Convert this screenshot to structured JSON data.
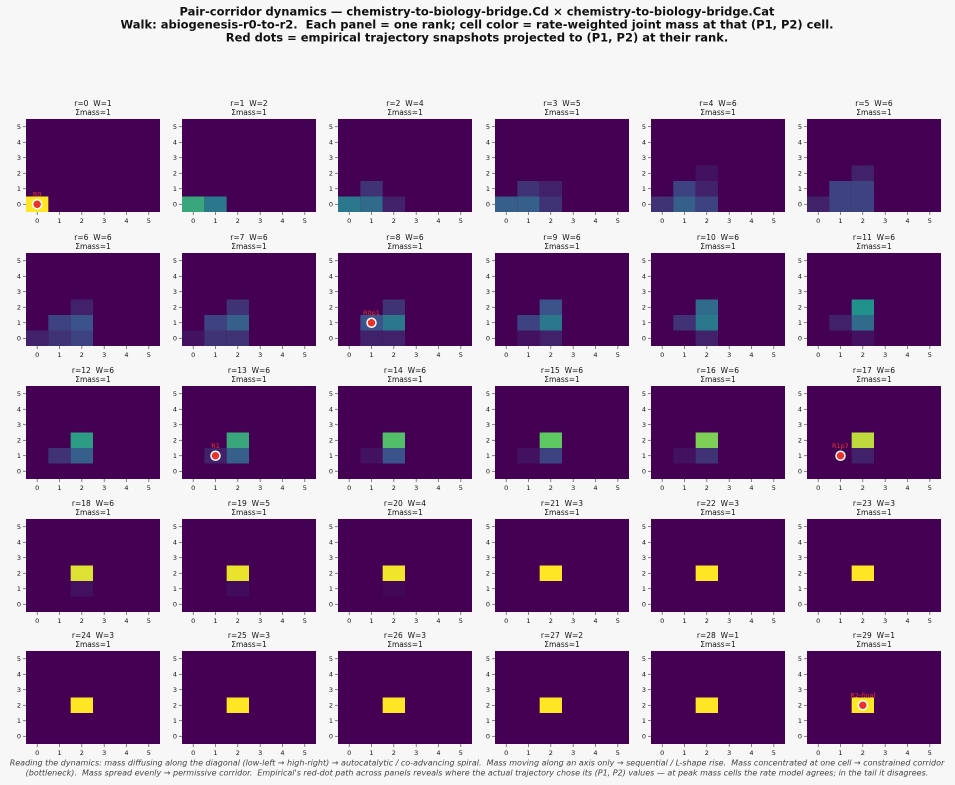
{
  "figure": {
    "title": [
      "Pair-corridor dynamics — chemistry-to-biology-bridge.Cd × chemistry-to-biology-bridge.Cat",
      "Walk: abiogenesis-r0-to-r2.  Each panel = one rank; cell color = rate-weighted joint mass at that (P1, P2) cell.",
      "Red dots = empirical trajectory snapshots projected to (P1, P2) at their rank."
    ],
    "caption": [
      "Reading the dynamics: mass diffusing along the diagonal (low-left → high-right) → autocatalytic / co-advancing spiral.  Mass moving along an axis only → sequential / L-shape rise.  Mass concentrated at one cell → constrained corridor",
      "(bottleneck).  Mass spread evenly → permissive corridor.  Empirical's red-dot path across panels reveals where the actual trajectory chose its (P1, P2) values — at peak mass cells the rate model agrees; in the tail it disagrees."
    ]
  },
  "chart_data": [
    {
      "type": "heatmap",
      "title": "r=0  W=1",
      "subtitle": "Σmass=1",
      "cells": [
        {
          "x": 0,
          "y": 0,
          "v": 1
        }
      ],
      "dot": {
        "x": 0,
        "y": 0,
        "label": "R0"
      }
    },
    {
      "type": "heatmap",
      "title": "r=1  W=2",
      "subtitle": "Σmass=1",
      "cells": [
        {
          "x": 0,
          "y": 0,
          "v": 0.6
        },
        {
          "x": 1,
          "y": 0,
          "v": 0.4
        }
      ]
    },
    {
      "type": "heatmap",
      "title": "r=2  W=4",
      "subtitle": "Σmass=1",
      "cells": [
        {
          "x": 0,
          "y": 0,
          "v": 0.4
        },
        {
          "x": 1,
          "y": 0,
          "v": 0.35
        },
        {
          "x": 2,
          "y": 0,
          "v": 0.1
        },
        {
          "x": 1,
          "y": 1,
          "v": 0.15
        }
      ]
    },
    {
      "type": "heatmap",
      "title": "r=3  W=5",
      "subtitle": "Σmass=1",
      "cells": [
        {
          "x": 0,
          "y": 0,
          "v": 0.3
        },
        {
          "x": 1,
          "y": 0,
          "v": 0.3
        },
        {
          "x": 2,
          "y": 0,
          "v": 0.15
        },
        {
          "x": 1,
          "y": 1,
          "v": 0.15
        },
        {
          "x": 2,
          "y": 1,
          "v": 0.1
        }
      ]
    },
    {
      "type": "heatmap",
      "title": "r=4  W=6",
      "subtitle": "Σmass=1",
      "cells": [
        {
          "x": 0,
          "y": 0,
          "v": 0.15
        },
        {
          "x": 1,
          "y": 0,
          "v": 0.3
        },
        {
          "x": 2,
          "y": 0,
          "v": 0.2
        },
        {
          "x": 1,
          "y": 1,
          "v": 0.2
        },
        {
          "x": 2,
          "y": 1,
          "v": 0.1
        },
        {
          "x": 2,
          "y": 2,
          "v": 0.05
        }
      ]
    },
    {
      "type": "heatmap",
      "title": "r=5  W=6",
      "subtitle": "Σmass=1",
      "cells": [
        {
          "x": 0,
          "y": 0,
          "v": 0.1
        },
        {
          "x": 1,
          "y": 0,
          "v": 0.2
        },
        {
          "x": 2,
          "y": 0,
          "v": 0.2
        },
        {
          "x": 1,
          "y": 1,
          "v": 0.2
        },
        {
          "x": 2,
          "y": 1,
          "v": 0.2
        },
        {
          "x": 2,
          "y": 2,
          "v": 0.1
        }
      ]
    },
    {
      "type": "heatmap",
      "title": "r=6  W=6",
      "subtitle": "Σmass=1",
      "cells": [
        {
          "x": 0,
          "y": 0,
          "v": 0.1
        },
        {
          "x": 1,
          "y": 0,
          "v": 0.15
        },
        {
          "x": 2,
          "y": 0,
          "v": 0.2
        },
        {
          "x": 1,
          "y": 1,
          "v": 0.2
        },
        {
          "x": 2,
          "y": 1,
          "v": 0.25
        },
        {
          "x": 2,
          "y": 2,
          "v": 0.1
        }
      ]
    },
    {
      "type": "heatmap",
      "title": "r=7  W=6",
      "subtitle": "Σmass=1",
      "cells": [
        {
          "x": 0,
          "y": 0,
          "v": 0.05
        },
        {
          "x": 1,
          "y": 0,
          "v": 0.15
        },
        {
          "x": 2,
          "y": 0,
          "v": 0.15
        },
        {
          "x": 1,
          "y": 1,
          "v": 0.2
        },
        {
          "x": 2,
          "y": 1,
          "v": 0.3
        },
        {
          "x": 2,
          "y": 2,
          "v": 0.15
        }
      ]
    },
    {
      "type": "heatmap",
      "title": "r=8  W=6",
      "subtitle": "Σmass=1",
      "cells": [
        {
          "x": 1,
          "y": 0,
          "v": 0.1
        },
        {
          "x": 2,
          "y": 0,
          "v": 0.1
        },
        {
          "x": 1,
          "y": 1,
          "v": 0.25
        },
        {
          "x": 2,
          "y": 1,
          "v": 0.4
        },
        {
          "x": 2,
          "y": 2,
          "v": 0.15
        }
      ],
      "dot": {
        "x": 1,
        "y": 1,
        "label": "R0p1"
      }
    },
    {
      "type": "heatmap",
      "title": "r=9  W=6",
      "subtitle": "Σmass=1",
      "cells": [
        {
          "x": 1,
          "y": 0,
          "v": 0.05
        },
        {
          "x": 2,
          "y": 0,
          "v": 0.1
        },
        {
          "x": 1,
          "y": 1,
          "v": 0.2
        },
        {
          "x": 2,
          "y": 1,
          "v": 0.4
        },
        {
          "x": 2,
          "y": 2,
          "v": 0.25
        }
      ]
    },
    {
      "type": "heatmap",
      "title": "r=10  W=6",
      "subtitle": "Σmass=1",
      "cells": [
        {
          "x": 2,
          "y": 0,
          "v": 0.1
        },
        {
          "x": 1,
          "y": 1,
          "v": 0.15
        },
        {
          "x": 2,
          "y": 1,
          "v": 0.4
        },
        {
          "x": 2,
          "y": 2,
          "v": 0.35
        }
      ]
    },
    {
      "type": "heatmap",
      "title": "r=11  W=6",
      "subtitle": "Σmass=1",
      "cells": [
        {
          "x": 2,
          "y": 0,
          "v": 0.05
        },
        {
          "x": 1,
          "y": 1,
          "v": 0.1
        },
        {
          "x": 2,
          "y": 1,
          "v": 0.35
        },
        {
          "x": 2,
          "y": 2,
          "v": 0.5
        }
      ]
    },
    {
      "type": "heatmap",
      "title": "r=12  W=6",
      "subtitle": "Σmass=1",
      "cells": [
        {
          "x": 1,
          "y": 1,
          "v": 0.15
        },
        {
          "x": 2,
          "y": 1,
          "v": 0.3
        },
        {
          "x": 2,
          "y": 2,
          "v": 0.55
        }
      ]
    },
    {
      "type": "heatmap",
      "title": "r=13  W=6",
      "subtitle": "Σmass=1",
      "cells": [
        {
          "x": 1,
          "y": 1,
          "v": 0.1
        },
        {
          "x": 2,
          "y": 1,
          "v": 0.3
        },
        {
          "x": 2,
          "y": 2,
          "v": 0.6
        }
      ],
      "dot": {
        "x": 1,
        "y": 1,
        "label": "R1"
      }
    },
    {
      "type": "heatmap",
      "title": "r=14  W=6",
      "subtitle": "Σmass=1",
      "cells": [
        {
          "x": 1,
          "y": 1,
          "v": 0.05
        },
        {
          "x": 2,
          "y": 1,
          "v": 0.25
        },
        {
          "x": 2,
          "y": 2,
          "v": 0.7
        }
      ]
    },
    {
      "type": "heatmap",
      "title": "r=15  W=6",
      "subtitle": "Σmass=1",
      "cells": [
        {
          "x": 1,
          "y": 1,
          "v": 0.05
        },
        {
          "x": 2,
          "y": 1,
          "v": 0.2
        },
        {
          "x": 2,
          "y": 2,
          "v": 0.75
        }
      ]
    },
    {
      "type": "heatmap",
      "title": "r=16  W=6",
      "subtitle": "Σmass=1",
      "cells": [
        {
          "x": 1,
          "y": 1,
          "v": 0.05
        },
        {
          "x": 2,
          "y": 1,
          "v": 0.15
        },
        {
          "x": 2,
          "y": 2,
          "v": 0.8
        }
      ]
    },
    {
      "type": "heatmap",
      "title": "r=17  W=6",
      "subtitle": "Σmass=1",
      "cells": [
        {
          "x": 2,
          "y": 1,
          "v": 0.1
        },
        {
          "x": 2,
          "y": 2,
          "v": 0.9
        }
      ],
      "dot": {
        "x": 1,
        "y": 1,
        "label": "R1p7"
      }
    },
    {
      "type": "heatmap",
      "title": "r=18  W=6",
      "subtitle": "Σmass=1",
      "cells": [
        {
          "x": 2,
          "y": 1,
          "v": 0.05
        },
        {
          "x": 2,
          "y": 2,
          "v": 0.95
        }
      ]
    },
    {
      "type": "heatmap",
      "title": "r=19  W=5",
      "subtitle": "Σmass=1",
      "cells": [
        {
          "x": 2,
          "y": 1,
          "v": 0.03
        },
        {
          "x": 2,
          "y": 2,
          "v": 0.97
        }
      ]
    },
    {
      "type": "heatmap",
      "title": "r=20  W=4",
      "subtitle": "Σmass=1",
      "cells": [
        {
          "x": 2,
          "y": 1,
          "v": 0.02
        },
        {
          "x": 2,
          "y": 2,
          "v": 0.98
        }
      ]
    },
    {
      "type": "heatmap",
      "title": "r=21  W=3",
      "subtitle": "Σmass=1",
      "cells": [
        {
          "x": 2,
          "y": 2,
          "v": 1
        }
      ]
    },
    {
      "type": "heatmap",
      "title": "r=22  W=3",
      "subtitle": "Σmass=1",
      "cells": [
        {
          "x": 2,
          "y": 2,
          "v": 1
        }
      ]
    },
    {
      "type": "heatmap",
      "title": "r=23  W=3",
      "subtitle": "Σmass=1",
      "cells": [
        {
          "x": 2,
          "y": 2,
          "v": 1
        }
      ]
    },
    {
      "type": "heatmap",
      "title": "r=24  W=3",
      "subtitle": "Σmass=1",
      "cells": [
        {
          "x": 2,
          "y": 2,
          "v": 1
        }
      ]
    },
    {
      "type": "heatmap",
      "title": "r=25  W=3",
      "subtitle": "Σmass=1",
      "cells": [
        {
          "x": 2,
          "y": 2,
          "v": 1
        }
      ]
    },
    {
      "type": "heatmap",
      "title": "r=26  W=3",
      "subtitle": "Σmass=1",
      "cells": [
        {
          "x": 2,
          "y": 2,
          "v": 1
        }
      ]
    },
    {
      "type": "heatmap",
      "title": "r=27  W=2",
      "subtitle": "Σmass=1",
      "cells": [
        {
          "x": 2,
          "y": 2,
          "v": 1
        }
      ]
    },
    {
      "type": "heatmap",
      "title": "r=28  W=1",
      "subtitle": "Σmass=1",
      "cells": [
        {
          "x": 2,
          "y": 2,
          "v": 1
        }
      ]
    },
    {
      "type": "heatmap",
      "title": "r=29  W=1",
      "subtitle": "Σmass=1",
      "cells": [
        {
          "x": 2,
          "y": 2,
          "v": 1
        }
      ],
      "dot": {
        "x": 2,
        "y": 2,
        "label": "R2-final"
      }
    }
  ],
  "axes": {
    "xlim": [
      -0.5,
      5.5
    ],
    "ylim": [
      -0.5,
      5.5
    ],
    "xticks": [
      0,
      1,
      2,
      3,
      4,
      5
    ],
    "yticks": [
      0,
      1,
      2,
      3,
      4,
      5
    ],
    "zlim": [
      0,
      1
    ],
    "colormap": "viridis",
    "dot_color": "#e8332a"
  }
}
